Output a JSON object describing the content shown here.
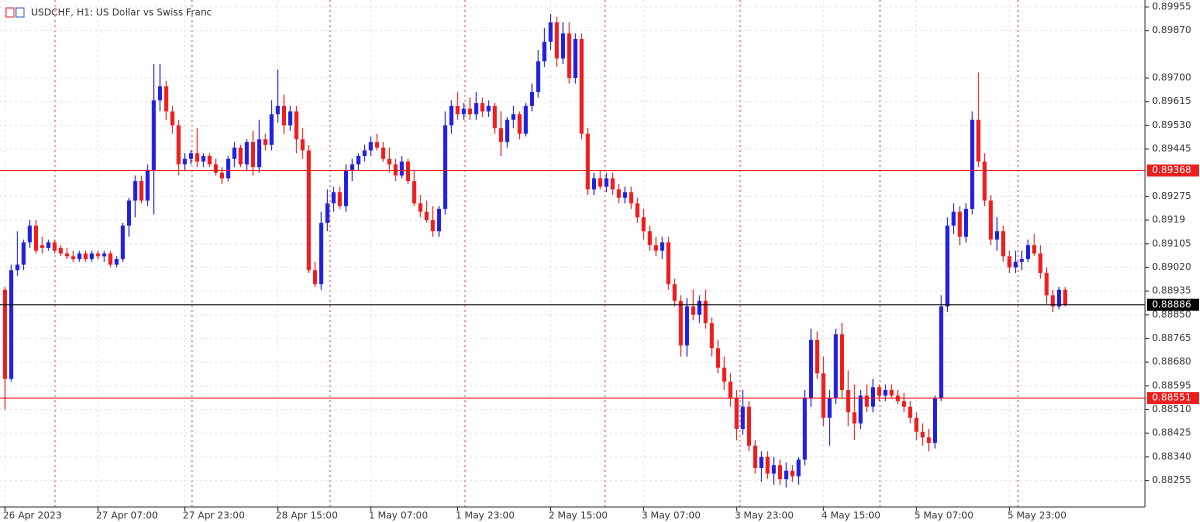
{
  "chart_data": {
    "type": "candlestick",
    "title": "USDCHF, H1:  US Dollar vs Swiss Franc",
    "categories": [
      "26 Apr 2023",
      null,
      null,
      null,
      null,
      null,
      null,
      null,
      null,
      null,
      null,
      null,
      null,
      null,
      null,
      "27 Apr 07:00",
      null,
      null,
      null,
      null,
      null,
      null,
      null,
      null,
      null,
      null,
      null,
      null,
      null,
      "27 Apr 23:00",
      null,
      null,
      null,
      null,
      null,
      null,
      null,
      null,
      null,
      null,
      null,
      null,
      null,
      null,
      "28 Apr 15:00",
      null,
      null,
      null,
      null,
      null,
      null,
      null,
      null,
      null,
      null,
      null,
      null,
      null,
      null,
      "1 May 07:00",
      null,
      null,
      null,
      null,
      null,
      null,
      null,
      null,
      null,
      null,
      null,
      null,
      null,
      "1 May 23:00",
      null,
      null,
      null,
      null,
      null,
      null,
      null,
      null,
      null,
      null,
      null,
      null,
      null,
      null,
      "2 May 15:00",
      null,
      null,
      null,
      null,
      null,
      null,
      null,
      null,
      null,
      null,
      null,
      null,
      null,
      null,
      "3 May 07:00",
      null,
      null,
      null,
      null,
      null,
      null,
      null,
      null,
      null,
      null,
      null,
      null,
      null,
      null,
      "3 May 23:00",
      null,
      null,
      null,
      null,
      null,
      null,
      null,
      null,
      null,
      null,
      null,
      null,
      null,
      "4 May 15:00",
      null,
      null,
      null,
      null,
      null,
      null,
      null,
      null,
      null,
      null,
      null,
      null,
      null,
      null,
      "5 May 07:00",
      null,
      null,
      null,
      null,
      null,
      null,
      null,
      null,
      null,
      null,
      null,
      null,
      null,
      null,
      "5 May 23:00",
      null,
      null,
      null,
      null,
      null,
      null,
      null,
      null,
      null
    ],
    "open": [
      0.8894,
      0.8862,
      0.8901,
      0.8903,
      0.8911,
      0.8917,
      0.891,
      0.8909,
      0.8911,
      0.8909,
      0.8907,
      0.8906,
      0.8905,
      0.8907,
      0.8905,
      0.8907,
      0.8906,
      0.8907,
      0.8903,
      0.8905,
      0.8917,
      0.8926,
      0.8933,
      0.8926,
      0.8937,
      0.8962,
      0.8967,
      0.8958,
      0.8953,
      0.8939,
      0.8941,
      0.8943,
      0.894,
      0.8942,
      0.8939,
      0.8936,
      0.8934,
      0.8941,
      0.8945,
      0.8939,
      0.8947,
      0.8938,
      0.8948,
      0.8946,
      0.8957,
      0.896,
      0.8953,
      0.8958,
      0.8948,
      0.8944,
      0.8901,
      0.8896,
      0.8918,
      0.8925,
      0.8929,
      0.8924,
      0.8937,
      0.8939,
      0.8942,
      0.8944,
      0.8947,
      0.8945,
      0.8941,
      0.8939,
      0.8935,
      0.894,
      0.8933,
      0.8925,
      0.8922,
      0.8919,
      0.8915,
      0.8923,
      0.8953,
      0.896,
      0.8957,
      0.8959,
      0.8957,
      0.8961,
      0.8958,
      0.896,
      0.8952,
      0.8947,
      0.8955,
      0.8957,
      0.895,
      0.896,
      0.8965,
      0.8976,
      0.8983,
      0.899,
      0.8977,
      0.8986,
      0.897,
      0.8984,
      0.895,
      0.893,
      0.8934,
      0.8931,
      0.8934,
      0.893,
      0.8927,
      0.8929,
      0.8925,
      0.892,
      0.8915,
      0.891,
      0.8908,
      0.8911,
      0.8896,
      0.889,
      0.8874,
      0.8888,
      0.8885,
      0.889,
      0.8882,
      0.8873,
      0.8866,
      0.8861,
      0.8855,
      0.8844,
      0.8852,
      0.8838,
      0.883,
      0.8834,
      0.8828,
      0.8831,
      0.8826,
      0.8829,
      0.8827,
      0.8833,
      0.8855,
      0.8876,
      0.8864,
      0.8848,
      0.8855,
      0.8878,
      0.8858,
      0.885,
      0.8846,
      0.8856,
      0.8852,
      0.8859,
      0.8856,
      0.8858,
      0.8856,
      0.8854,
      0.8852,
      0.8848,
      0.8843,
      0.8841,
      0.8839,
      0.8855,
      0.8888,
      0.8917,
      0.8922,
      0.8913,
      0.8923,
      0.8955,
      0.894,
      0.8926,
      0.8912,
      0.8915,
      0.8906,
      0.8902,
      0.8904,
      0.8905,
      0.891,
      0.8907,
      0.89,
      0.8892,
      0.8888,
      0.8894
    ],
    "high": [
      0.8895,
      0.8903,
      0.8915,
      0.8912,
      0.8919,
      0.8919,
      0.8913,
      0.8912,
      0.8912,
      0.891,
      0.8909,
      0.8908,
      0.8908,
      0.8908,
      0.8908,
      0.8908,
      0.8908,
      0.8908,
      0.8906,
      0.8918,
      0.8927,
      0.8935,
      0.8935,
      0.8939,
      0.8975,
      0.8975,
      0.8969,
      0.896,
      0.8955,
      0.8943,
      0.8944,
      0.8952,
      0.8943,
      0.8943,
      0.8941,
      0.8938,
      0.8942,
      0.8947,
      0.8946,
      0.8948,
      0.8951,
      0.8955,
      0.895,
      0.8962,
      0.8973,
      0.8964,
      0.896,
      0.896,
      0.8952,
      0.8946,
      0.8904,
      0.8922,
      0.893,
      0.8931,
      0.8931,
      0.8939,
      0.8941,
      0.8943,
      0.8946,
      0.8949,
      0.895,
      0.8947,
      0.8945,
      0.8941,
      0.8942,
      0.8941,
      0.8937,
      0.8928,
      0.8926,
      0.8924,
      0.8924,
      0.8958,
      0.8962,
      0.8965,
      0.8961,
      0.8963,
      0.8965,
      0.8963,
      0.8962,
      0.8961,
      0.8958,
      0.8956,
      0.896,
      0.8958,
      0.8961,
      0.8968,
      0.898,
      0.8988,
      0.8993,
      0.8992,
      0.899,
      0.899,
      0.8986,
      0.8986,
      0.8952,
      0.8936,
      0.8937,
      0.8936,
      0.8936,
      0.8932,
      0.8931,
      0.8931,
      0.8927,
      0.8923,
      0.8917,
      0.8913,
      0.8913,
      0.8913,
      0.8898,
      0.8892,
      0.8891,
      0.8894,
      0.8892,
      0.8894,
      0.8884,
      0.8876,
      0.887,
      0.8864,
      0.8858,
      0.8858,
      0.8854,
      0.884,
      0.8836,
      0.8836,
      0.8834,
      0.8833,
      0.8832,
      0.8831,
      0.8834,
      0.8858,
      0.888,
      0.8879,
      0.887,
      0.8858,
      0.888,
      0.8882,
      0.8865,
      0.886,
      0.8858,
      0.886,
      0.8862,
      0.886,
      0.886,
      0.886,
      0.8858,
      0.8857,
      0.8854,
      0.885,
      0.8846,
      0.8844,
      0.8856,
      0.8892,
      0.892,
      0.8925,
      0.8924,
      0.8925,
      0.8958,
      0.8972,
      0.8943,
      0.8928,
      0.892,
      0.8917,
      0.8908,
      0.8908,
      0.8908,
      0.8912,
      0.8914,
      0.891,
      0.8902,
      0.8894,
      0.8895,
      0.8895
    ],
    "low": [
      0.8851,
      0.8861,
      0.8899,
      0.8901,
      0.8909,
      0.8907,
      0.8907,
      0.8908,
      0.8907,
      0.8906,
      0.8905,
      0.8904,
      0.8904,
      0.8904,
      0.8904,
      0.8905,
      0.8904,
      0.8902,
      0.8902,
      0.8904,
      0.8913,
      0.892,
      0.8925,
      0.8924,
      0.8921,
      0.8958,
      0.8955,
      0.895,
      0.8935,
      0.8937,
      0.8939,
      0.8938,
      0.8938,
      0.8938,
      0.8935,
      0.8932,
      0.8933,
      0.8938,
      0.8938,
      0.8937,
      0.8935,
      0.8936,
      0.8944,
      0.8944,
      0.8954,
      0.895,
      0.8951,
      0.8943,
      0.8941,
      0.89,
      0.8895,
      0.8894,
      0.8915,
      0.8922,
      0.8923,
      0.8922,
      0.8933,
      0.8937,
      0.894,
      0.8942,
      0.8944,
      0.894,
      0.8936,
      0.8933,
      0.8934,
      0.8932,
      0.8924,
      0.892,
      0.8918,
      0.8913,
      0.8913,
      0.8921,
      0.895,
      0.8955,
      0.8955,
      0.8955,
      0.8955,
      0.8956,
      0.8956,
      0.895,
      0.8942,
      0.8945,
      0.8952,
      0.8948,
      0.8949,
      0.8958,
      0.8963,
      0.8974,
      0.898,
      0.8974,
      0.8975,
      0.8968,
      0.8968,
      0.8948,
      0.8928,
      0.8928,
      0.893,
      0.8929,
      0.8928,
      0.8925,
      0.8925,
      0.8923,
      0.8918,
      0.8912,
      0.8908,
      0.8906,
      0.8905,
      0.8894,
      0.8888,
      0.887,
      0.887,
      0.8883,
      0.8882,
      0.888,
      0.887,
      0.8864,
      0.8858,
      0.8852,
      0.884,
      0.8842,
      0.8836,
      0.8828,
      0.8825,
      0.8826,
      0.8824,
      0.8824,
      0.8823,
      0.8825,
      0.8824,
      0.8831,
      0.8852,
      0.8862,
      0.8845,
      0.8838,
      0.8853,
      0.8855,
      0.8845,
      0.884,
      0.8844,
      0.885,
      0.885,
      0.8854,
      0.8854,
      0.8855,
      0.8853,
      0.885,
      0.8846,
      0.884,
      0.8838,
      0.8836,
      0.8837,
      0.8854,
      0.8886,
      0.8914,
      0.891,
      0.8911,
      0.8921,
      0.8938,
      0.8924,
      0.891,
      0.8908,
      0.8904,
      0.89,
      0.89,
      0.8901,
      0.8904,
      0.8906,
      0.8898,
      0.8889,
      0.8886,
      0.8887,
      0.8888
    ],
    "close": [
      0.8862,
      0.8901,
      0.8903,
      0.8911,
      0.8917,
      0.8908,
      0.8909,
      0.8911,
      0.8908,
      0.8907,
      0.8906,
      0.8905,
      0.8907,
      0.8905,
      0.8907,
      0.8906,
      0.8907,
      0.8903,
      0.8905,
      0.8917,
      0.8926,
      0.8933,
      0.8926,
      0.8937,
      0.8962,
      0.8967,
      0.8958,
      0.8953,
      0.8939,
      0.8941,
      0.8943,
      0.894,
      0.8942,
      0.8939,
      0.8936,
      0.8934,
      0.8941,
      0.8945,
      0.8939,
      0.8947,
      0.8938,
      0.8948,
      0.8946,
      0.8957,
      0.896,
      0.8953,
      0.8958,
      0.8948,
      0.8944,
      0.8901,
      0.8896,
      0.8918,
      0.8925,
      0.8929,
      0.8924,
      0.8937,
      0.8939,
      0.8942,
      0.8944,
      0.8947,
      0.8945,
      0.8941,
      0.8939,
      0.8935,
      0.894,
      0.8933,
      0.8925,
      0.8922,
      0.8919,
      0.8915,
      0.8923,
      0.8953,
      0.896,
      0.8957,
      0.8959,
      0.8957,
      0.8961,
      0.8958,
      0.896,
      0.8952,
      0.8947,
      0.8955,
      0.8957,
      0.895,
      0.896,
      0.8965,
      0.8976,
      0.8983,
      0.899,
      0.8977,
      0.8986,
      0.897,
      0.8984,
      0.895,
      0.893,
      0.8934,
      0.8931,
      0.8934,
      0.893,
      0.8927,
      0.8929,
      0.8925,
      0.892,
      0.8915,
      0.891,
      0.8908,
      0.8911,
      0.8896,
      0.889,
      0.8874,
      0.8888,
      0.8885,
      0.889,
      0.8882,
      0.8873,
      0.8866,
      0.8861,
      0.8855,
      0.8844,
      0.8852,
      0.8838,
      0.883,
      0.8834,
      0.8828,
      0.8831,
      0.8826,
      0.8829,
      0.8827,
      0.8833,
      0.8855,
      0.8876,
      0.8864,
      0.8848,
      0.8855,
      0.8878,
      0.8858,
      0.885,
      0.8846,
      0.8856,
      0.8852,
      0.8859,
      0.8856,
      0.8858,
      0.8856,
      0.8854,
      0.8852,
      0.8848,
      0.8843,
      0.8841,
      0.8839,
      0.8855,
      0.8888,
      0.8917,
      0.8922,
      0.8913,
      0.8923,
      0.8955,
      0.894,
      0.8926,
      0.8912,
      0.8915,
      0.8906,
      0.8902,
      0.8904,
      0.8905,
      0.891,
      0.8907,
      0.89,
      0.8892,
      0.8888,
      0.8894,
      0.88886
    ],
    "up_color": "#1f1fe0",
    "down_color": "#ee1c1c",
    "ylim": [
      0.8816,
      0.8998
    ],
    "yticks": [
      0.89955,
      {
        "value": 0.8987,
        "label": "0.89870"
      },
      {
        "value": 0.897,
        "label": "0.89700"
      },
      0.89615,
      {
        "value": 0.8953,
        "label": "0.89530"
      },
      0.89445,
      0.89275,
      0.8919,
      0.89105,
      {
        "value": 0.8902,
        "label": "0.89020"
      },
      0.88935,
      {
        "value": 0.8885,
        "label": "0.88850"
      },
      0.88765,
      {
        "value": 0.8868,
        "label": "0.88680"
      },
      0.88595,
      {
        "value": 0.8851,
        "label": "0.88510"
      },
      0.88425,
      {
        "value": 0.8834,
        "label": "0.88340"
      },
      0.88255
    ],
    "grid": true,
    "price_lines": [
      {
        "value": 0.89368,
        "color": "#ee1c1c"
      },
      {
        "value": 0.88886,
        "color": "#000000"
      },
      {
        "value": 0.88551,
        "color": "#ee1c1c"
      }
    ]
  }
}
